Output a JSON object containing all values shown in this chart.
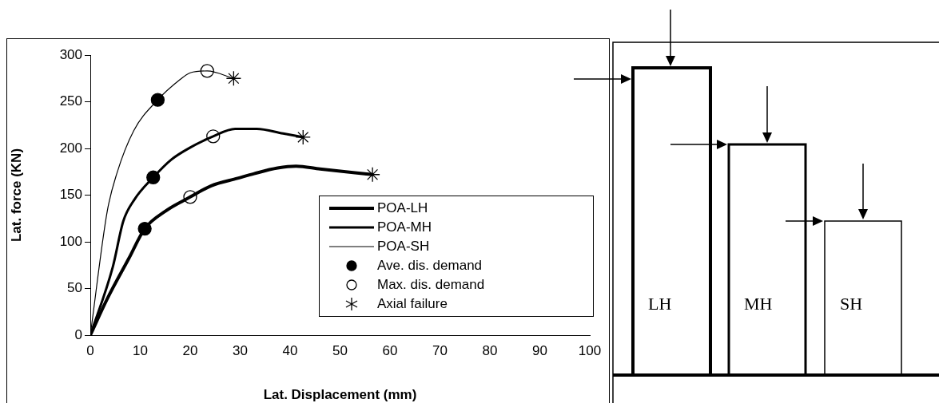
{
  "chart_data": [
    {
      "type": "line",
      "xlabel": "Lat. Displacement (mm)",
      "ylabel": "Lat. force (KN)",
      "xlim": [
        0,
        100
      ],
      "xticks": [
        0,
        10,
        20,
        30,
        40,
        50,
        60,
        70,
        80,
        90,
        100
      ],
      "ylim": [
        0,
        300
      ],
      "yticks": [
        0,
        50,
        100,
        150,
        200,
        250,
        300
      ],
      "grid": false,
      "legend": "bottom right",
      "series": [
        {
          "name": "POA-LH",
          "color": "#000000",
          "marker": "none",
          "x": [
            0,
            3.4,
            7.7,
            10.9,
            15.1,
            20,
            24.2,
            29.5,
            32.8,
            37.5,
            41.2,
            46,
            56.5
          ],
          "values": [
            0,
            39,
            82,
            114,
            133,
            148,
            160,
            168,
            173,
            179,
            181,
            178,
            172
          ]
        },
        {
          "name": "POA-MH",
          "color": "#000000",
          "marker": "none",
          "x": [
            0,
            4.5,
            6.6,
            8.8,
            12.6,
            16.2,
            20,
            24.6,
            29,
            33.3,
            38.6,
            42.6
          ],
          "values": [
            0,
            73,
            122,
            145,
            169,
            188,
            201,
            213,
            221,
            221,
            216,
            212
          ]
        },
        {
          "name": "POA-SH",
          "color": "#000000",
          "marker": "none",
          "x": [
            0,
            3.4,
            5.3,
            8.7,
            13.5,
            17.8,
            20,
            23.4,
            28.7
          ],
          "values": [
            0,
            133,
            173,
            219,
            252,
            273,
            281,
            283,
            275
          ]
        },
        {
          "name": "Ave. dis. demand",
          "type": "scatter",
          "color": "#000000",
          "marker": "circle",
          "x": [
            10.9,
            12.6,
            13.5
          ],
          "values": [
            114,
            169,
            252
          ]
        },
        {
          "name": "Max. dis. demand",
          "type": "scatter",
          "color": "#ffffff",
          "marker": "circle",
          "x": [
            20,
            24.6,
            23.4
          ],
          "values": [
            148,
            213,
            283
          ]
        },
        {
          "name": "Axial failure",
          "type": "scatter",
          "color": "#000000",
          "marker": "cross",
          "x": [
            56.5,
            42.6,
            28.7
          ],
          "values": [
            172,
            212,
            275
          ]
        }
      ]
    },
    {
      "type": "other",
      "annotations": [
        "LH",
        "MH",
        "SH"
      ]
    }
  ]
}
